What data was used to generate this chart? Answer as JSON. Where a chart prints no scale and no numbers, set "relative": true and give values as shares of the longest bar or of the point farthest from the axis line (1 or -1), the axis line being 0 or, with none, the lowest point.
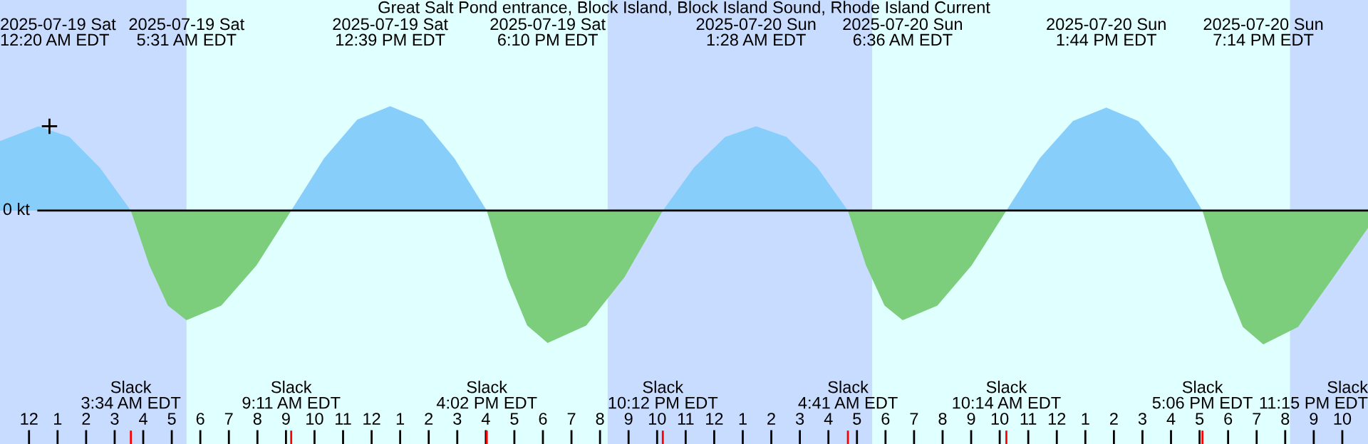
{
  "chart_data": {
    "type": "area",
    "title": "Great Salt Pond entrance, Block Island, Block Island Sound, Rhode Island Current",
    "relative": true,
    "tick_labels": "x",
    "xlim": [
      "2025-07-18T22:59",
      "2025-07-20T22:54"
    ],
    "xticks": [
      {
        "value": "2025-07-19T00:00",
        "label": "12"
      },
      {
        "value": "2025-07-19T01:00",
        "label": "1"
      },
      {
        "value": "2025-07-19T02:00",
        "label": "2"
      },
      {
        "value": "2025-07-19T03:00",
        "label": "3"
      },
      {
        "value": "2025-07-19T04:00",
        "label": "4"
      },
      {
        "value": "2025-07-19T05:00",
        "label": "5"
      },
      {
        "value": "2025-07-19T06:00",
        "label": "6"
      },
      {
        "value": "2025-07-19T07:00",
        "label": "7"
      },
      {
        "value": "2025-07-19T08:00",
        "label": "8"
      },
      {
        "value": "2025-07-19T09:00",
        "label": "9"
      },
      {
        "value": "2025-07-19T10:00",
        "label": "10"
      },
      {
        "value": "2025-07-19T11:00",
        "label": "11"
      },
      {
        "value": "2025-07-19T12:00",
        "label": "12"
      },
      {
        "value": "2025-07-19T13:00",
        "label": "1"
      },
      {
        "value": "2025-07-19T14:00",
        "label": "2"
      },
      {
        "value": "2025-07-19T15:00",
        "label": "3"
      },
      {
        "value": "2025-07-19T16:00",
        "label": "4"
      },
      {
        "value": "2025-07-19T17:00",
        "label": "5"
      },
      {
        "value": "2025-07-19T18:00",
        "label": "6"
      },
      {
        "value": "2025-07-19T19:00",
        "label": "7"
      },
      {
        "value": "2025-07-19T20:00",
        "label": "8"
      },
      {
        "value": "2025-07-19T21:00",
        "label": "9"
      },
      {
        "value": "2025-07-19T22:00",
        "label": "10"
      },
      {
        "value": "2025-07-19T23:00",
        "label": "11"
      },
      {
        "value": "2025-07-20T00:00",
        "label": "12"
      },
      {
        "value": "2025-07-20T01:00",
        "label": "1"
      },
      {
        "value": "2025-07-20T02:00",
        "label": "2"
      },
      {
        "value": "2025-07-20T03:00",
        "label": "3"
      },
      {
        "value": "2025-07-20T04:00",
        "label": "4"
      },
      {
        "value": "2025-07-20T05:00",
        "label": "5"
      },
      {
        "value": "2025-07-20T06:00",
        "label": "6"
      },
      {
        "value": "2025-07-20T07:00",
        "label": "7"
      },
      {
        "value": "2025-07-20T08:00",
        "label": "8"
      },
      {
        "value": "2025-07-20T09:00",
        "label": "9"
      },
      {
        "value": "2025-07-20T10:00",
        "label": "10"
      },
      {
        "value": "2025-07-20T11:00",
        "label": "11"
      },
      {
        "value": "2025-07-20T12:00",
        "label": "12"
      },
      {
        "value": "2025-07-20T13:00",
        "label": "1"
      },
      {
        "value": "2025-07-20T14:00",
        "label": "2"
      },
      {
        "value": "2025-07-20T15:00",
        "label": "3"
      },
      {
        "value": "2025-07-20T16:00",
        "label": "4"
      },
      {
        "value": "2025-07-20T17:00",
        "label": "5"
      },
      {
        "value": "2025-07-20T18:00",
        "label": "6"
      },
      {
        "value": "2025-07-20T19:00",
        "label": "7"
      },
      {
        "value": "2025-07-20T20:00",
        "label": "8"
      },
      {
        "value": "2025-07-20T21:00",
        "label": "9"
      },
      {
        "value": "2025-07-20T22:00",
        "label": "10"
      }
    ],
    "series": [
      {
        "color": "#87cefa",
        "x": [
          "2025-07-18T22:59",
          "2025-07-19T00:20",
          "2025-07-19T01:25",
          "2025-07-19T02:29",
          "2025-07-19T03:34",
          "2025-07-19T09:11",
          "2025-07-19T10:20",
          "2025-07-19T11:30",
          "2025-07-19T12:39",
          "2025-07-19T13:47",
          "2025-07-19T14:54",
          "2025-07-19T16:02",
          "2025-07-19T22:12",
          "2025-07-19T23:17",
          "2025-07-20T00:23",
          "2025-07-20T01:28",
          "2025-07-20T02:32",
          "2025-07-20T03:37",
          "2025-07-20T04:41",
          "2025-07-20T10:14",
          "2025-07-20T11:24",
          "2025-07-20T12:34",
          "2025-07-20T13:44",
          "2025-07-20T14:51",
          "2025-07-20T15:59",
          "2025-07-20T17:06"
        ],
        "values": [
          0.52,
          0.63,
          0.55,
          0.32,
          0,
          0,
          0.39,
          0.68,
          0.78,
          0.68,
          0.39,
          0,
          0,
          0.32,
          0.55,
          0.63,
          0.55,
          0.32,
          0,
          0,
          0.39,
          0.67,
          0.77,
          0.67,
          0.39,
          0
        ]
      },
      {
        "color": "#7ccd7c",
        "x": [
          "2025-07-19T03:34",
          "2025-07-19T04:13",
          "2025-07-19T04:52",
          "2025-07-19T05:31",
          "2025-07-19T06:44",
          "2025-07-19T07:58",
          "2025-07-19T09:11",
          "2025-07-19T16:02",
          "2025-07-19T16:45",
          "2025-07-19T17:27",
          "2025-07-19T18:10",
          "2025-07-19T19:31",
          "2025-07-19T20:51",
          "2025-07-19T22:12",
          "2025-07-20T04:41",
          "2025-07-20T05:19",
          "2025-07-20T05:58",
          "2025-07-20T06:36",
          "2025-07-20T07:49",
          "2025-07-20T09:01",
          "2025-07-20T10:14",
          "2025-07-20T17:06",
          "2025-07-20T17:49",
          "2025-07-20T18:31",
          "2025-07-20T19:14",
          "2025-07-20T20:27",
          "2025-07-20T21:41",
          "2025-07-20T22:54"
        ],
        "values": [
          0,
          -0.41,
          -0.71,
          -0.82,
          -0.71,
          -0.41,
          0,
          0,
          -0.5,
          -0.86,
          -0.99,
          -0.86,
          -0.5,
          0,
          0,
          -0.41,
          -0.71,
          -0.82,
          -0.71,
          -0.41,
          0,
          0,
          -0.5,
          -0.87,
          -1,
          -0.87,
          -0.5,
          -0.13
        ]
      },
      {
        "type": "scatter",
        "color": "#000000",
        "marker": "cross",
        "x": [
          "2025-07-19T00:43"
        ],
        "values": [
          0.63
        ]
      }
    ],
    "bands": [
      {
        "axis": "x",
        "from": "2025-07-18T22:59",
        "to": "2025-07-19T05:31",
        "color": "#c8dcff"
      },
      {
        "axis": "x",
        "from": "2025-07-19T20:16",
        "to": "2025-07-20T05:32",
        "color": "#c8dcff"
      },
      {
        "axis": "x",
        "from": "2025-07-20T20:10",
        "to": "2025-07-20T22:54",
        "color": "#c8dcff"
      }
    ],
    "ref_lines": [
      {
        "axis": "y",
        "value": 0,
        "label": "0 kt",
        "color": "#000000"
      }
    ],
    "annotations": [
      "2025-07-19 Sat\n12:20 AM EDT",
      "2025-07-19 Sat\n5:31 AM EDT",
      "2025-07-19 Sat\n12:39 PM EDT",
      "2025-07-19 Sat\n6:10 PM EDT",
      "2025-07-20 Sun\n1:28 AM EDT",
      "2025-07-20 Sun\n6:36 AM EDT",
      "2025-07-20 Sun\n1:44 PM EDT",
      "2025-07-20 Sun\n7:14 PM EDT",
      "Slack\n3:34 AM EDT",
      "Slack\n9:11 AM EDT",
      "Slack\n4:02 PM EDT",
      "Slack\n10:12 PM EDT",
      "Slack\n4:41 AM EDT",
      "Slack\n10:14 AM EDT",
      "Slack\n5:06 PM EDT",
      "Slack\n11:15 PM EDT"
    ]
  }
}
